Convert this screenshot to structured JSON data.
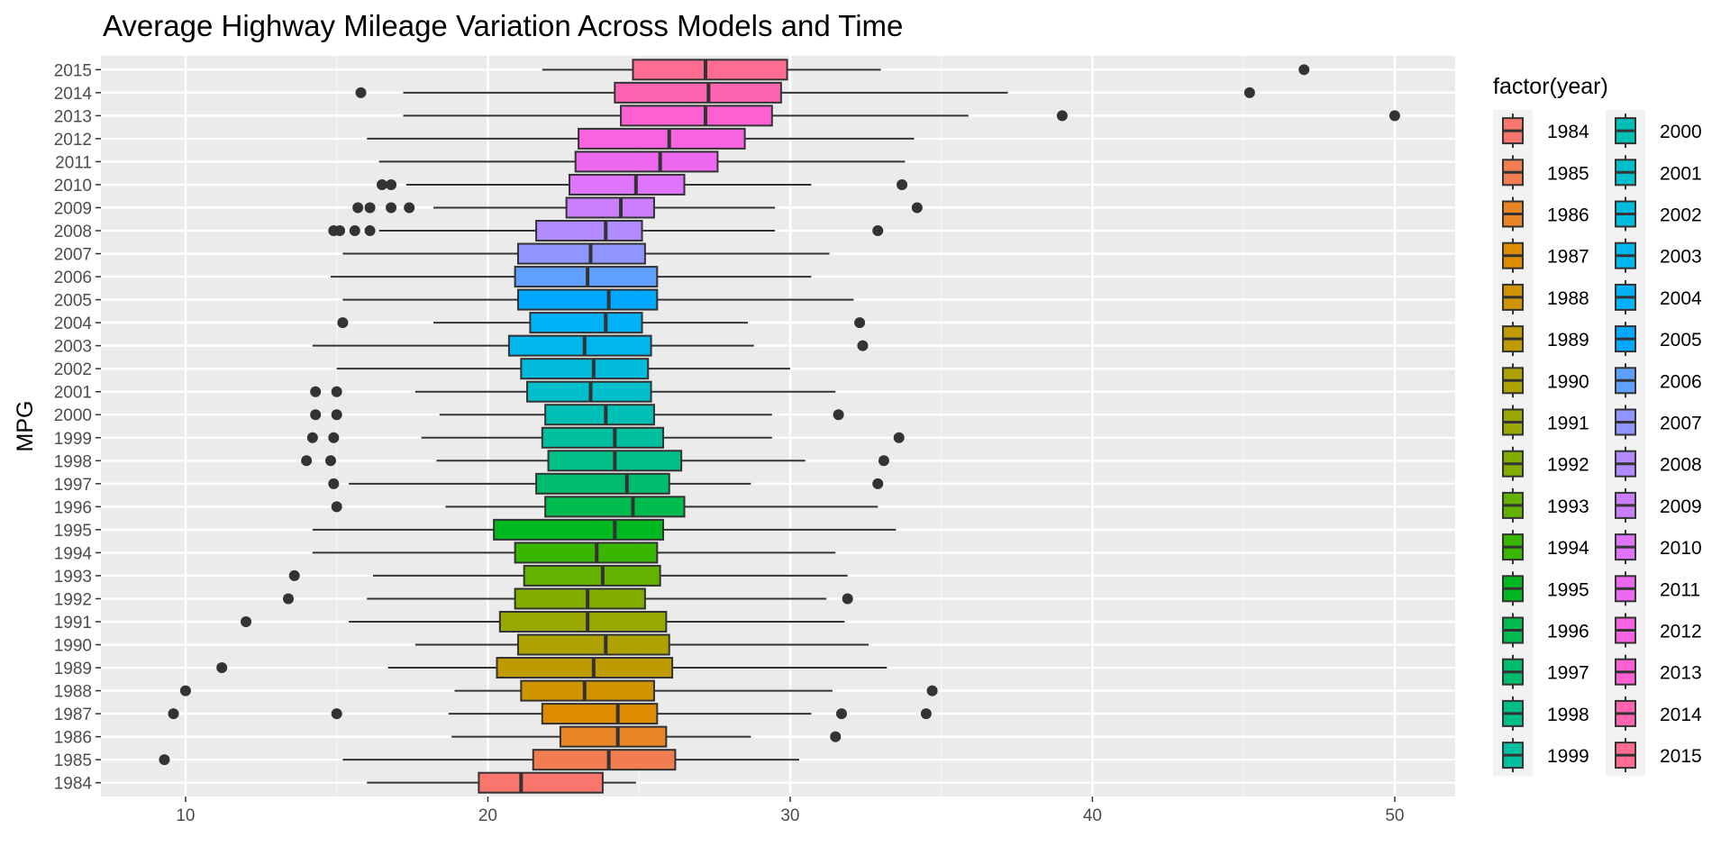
{
  "chart_data": {
    "type": "boxplot",
    "orientation": "horizontal",
    "title": "Average Highway Mileage Variation Across Models and Time",
    "xlabel": "",
    "ylabel": "MPG",
    "xlim": [
      7.2,
      52.0
    ],
    "x_ticks": [
      10,
      20,
      30,
      40,
      50
    ],
    "grid": true,
    "legend": {
      "title": "factor(year)",
      "position": "right",
      "columns": 2
    },
    "series": [
      {
        "name": "1984",
        "color": "#F8766D",
        "min": 16.0,
        "q1": 19.7,
        "median": 21.1,
        "q3": 23.8,
        "max": 24.9,
        "outliers": []
      },
      {
        "name": "1985",
        "color": "#F17D50",
        "min": 15.2,
        "q1": 21.5,
        "median": 24.0,
        "q3": 26.2,
        "max": 30.3,
        "outliers": [
          9.3
        ]
      },
      {
        "name": "1986",
        "color": "#E88526",
        "min": 18.8,
        "q1": 22.4,
        "median": 24.3,
        "q3": 25.9,
        "max": 28.7,
        "outliers": [
          31.5
        ]
      },
      {
        "name": "1987",
        "color": "#DE8C00",
        "min": 18.7,
        "q1": 21.8,
        "median": 24.3,
        "q3": 25.6,
        "max": 30.7,
        "outliers": [
          9.6,
          15.0,
          31.7,
          34.5
        ]
      },
      {
        "name": "1988",
        "color": "#CF9400",
        "min": 18.9,
        "q1": 21.1,
        "median": 23.2,
        "q3": 25.5,
        "max": 31.4,
        "outliers": [
          10.0,
          34.7
        ]
      },
      {
        "name": "1989",
        "color": "#BF9B00",
        "min": 16.7,
        "q1": 20.3,
        "median": 23.5,
        "q3": 26.1,
        "max": 33.2,
        "outliers": [
          11.2
        ]
      },
      {
        "name": "1990",
        "color": "#AEA200",
        "min": 17.6,
        "q1": 21.0,
        "median": 23.9,
        "q3": 26.0,
        "max": 32.6,
        "outliers": []
      },
      {
        "name": "1991",
        "color": "#99A800",
        "min": 15.4,
        "q1": 20.4,
        "median": 23.3,
        "q3": 25.9,
        "max": 31.8,
        "outliers": [
          12.0
        ]
      },
      {
        "name": "1992",
        "color": "#81AD00",
        "min": 16.0,
        "q1": 20.9,
        "median": 23.3,
        "q3": 25.2,
        "max": 31.2,
        "outliers": [
          13.4,
          31.9
        ]
      },
      {
        "name": "1993",
        "color": "#64B200",
        "min": 16.2,
        "q1": 21.2,
        "median": 23.8,
        "q3": 25.7,
        "max": 31.9,
        "outliers": [
          13.6
        ]
      },
      {
        "name": "1994",
        "color": "#39B600",
        "min": 14.2,
        "q1": 20.9,
        "median": 23.6,
        "q3": 25.6,
        "max": 31.5,
        "outliers": []
      },
      {
        "name": "1995",
        "color": "#00B81F",
        "min": 14.2,
        "q1": 20.2,
        "median": 24.2,
        "q3": 25.8,
        "max": 33.5,
        "outliers": []
      },
      {
        "name": "1996",
        "color": "#00BB4E",
        "min": 18.6,
        "q1": 21.9,
        "median": 24.8,
        "q3": 26.5,
        "max": 32.9,
        "outliers": [
          15.0
        ]
      },
      {
        "name": "1997",
        "color": "#00BD6D",
        "min": 15.4,
        "q1": 21.6,
        "median": 24.6,
        "q3": 26.0,
        "max": 28.7,
        "outliers": [
          14.9,
          32.9
        ]
      },
      {
        "name": "1998",
        "color": "#00BF87",
        "min": 18.3,
        "q1": 22.0,
        "median": 24.2,
        "q3": 26.4,
        "max": 30.5,
        "outliers": [
          14.0,
          14.8,
          33.1
        ]
      },
      {
        "name": "1999",
        "color": "#00C09F",
        "min": 17.8,
        "q1": 21.8,
        "median": 24.2,
        "q3": 25.8,
        "max": 29.4,
        "outliers": [
          14.2,
          14.9,
          33.6
        ]
      },
      {
        "name": "2000",
        "color": "#00C0B5",
        "min": 18.4,
        "q1": 21.9,
        "median": 23.9,
        "q3": 25.5,
        "max": 29.4,
        "outliers": [
          14.3,
          15.0,
          31.6
        ]
      },
      {
        "name": "2001",
        "color": "#00BECA",
        "min": 17.6,
        "q1": 21.3,
        "median": 23.4,
        "q3": 25.4,
        "max": 31.5,
        "outliers": [
          14.3,
          15.0
        ]
      },
      {
        "name": "2002",
        "color": "#00BBDB",
        "min": 15.0,
        "q1": 21.1,
        "median": 23.5,
        "q3": 25.3,
        "max": 30.0,
        "outliers": []
      },
      {
        "name": "2003",
        "color": "#00B7EB",
        "min": 14.2,
        "q1": 20.7,
        "median": 23.2,
        "q3": 25.4,
        "max": 28.8,
        "outliers": [
          32.4
        ]
      },
      {
        "name": "2004",
        "color": "#00B1F7",
        "min": 18.2,
        "q1": 21.4,
        "median": 23.9,
        "q3": 25.1,
        "max": 28.6,
        "outliers": [
          15.2,
          32.3
        ]
      },
      {
        "name": "2005",
        "color": "#00A9FF",
        "min": 15.2,
        "q1": 21.0,
        "median": 24.0,
        "q3": 25.6,
        "max": 32.1,
        "outliers": []
      },
      {
        "name": "2006",
        "color": "#5FA0FF",
        "min": 14.8,
        "q1": 20.9,
        "median": 23.3,
        "q3": 25.6,
        "max": 30.7,
        "outliers": []
      },
      {
        "name": "2007",
        "color": "#9195FF",
        "min": 15.2,
        "q1": 21.0,
        "median": 23.4,
        "q3": 25.2,
        "max": 31.3,
        "outliers": []
      },
      {
        "name": "2008",
        "color": "#B18BFF",
        "min": 16.4,
        "q1": 21.6,
        "median": 23.9,
        "q3": 25.1,
        "max": 29.5,
        "outliers": [
          14.9,
          15.1,
          15.6,
          16.1,
          32.9
        ]
      },
      {
        "name": "2009",
        "color": "#CB7FFF",
        "min": 18.2,
        "q1": 22.6,
        "median": 24.4,
        "q3": 25.5,
        "max": 29.5,
        "outliers": [
          15.7,
          16.1,
          16.8,
          17.4,
          34.2
        ]
      },
      {
        "name": "2010",
        "color": "#DE75FA",
        "min": 17.3,
        "q1": 22.7,
        "median": 24.9,
        "q3": 26.5,
        "max": 30.7,
        "outliers": [
          16.5,
          16.8,
          33.7
        ]
      },
      {
        "name": "2011",
        "color": "#EC69EF",
        "min": 16.4,
        "q1": 22.9,
        "median": 25.7,
        "q3": 27.6,
        "max": 33.8,
        "outliers": []
      },
      {
        "name": "2012",
        "color": "#F763E0",
        "min": 16.0,
        "q1": 23.0,
        "median": 26.0,
        "q3": 28.5,
        "max": 34.1,
        "outliers": []
      },
      {
        "name": "2013",
        "color": "#FD61D1",
        "min": 17.2,
        "q1": 24.4,
        "median": 27.2,
        "q3": 29.4,
        "max": 35.9,
        "outliers": [
          39.0,
          50.0
        ]
      },
      {
        "name": "2014",
        "color": "#FF64B0",
        "min": 17.2,
        "q1": 24.2,
        "median": 27.3,
        "q3": 29.7,
        "max": 37.2,
        "outliers": [
          15.8,
          45.2
        ]
      },
      {
        "name": "2015",
        "color": "#FF6C91",
        "min": 21.8,
        "q1": 24.8,
        "median": 27.2,
        "q3": 29.9,
        "max": 33.0,
        "outliers": [
          47.0
        ]
      }
    ]
  }
}
